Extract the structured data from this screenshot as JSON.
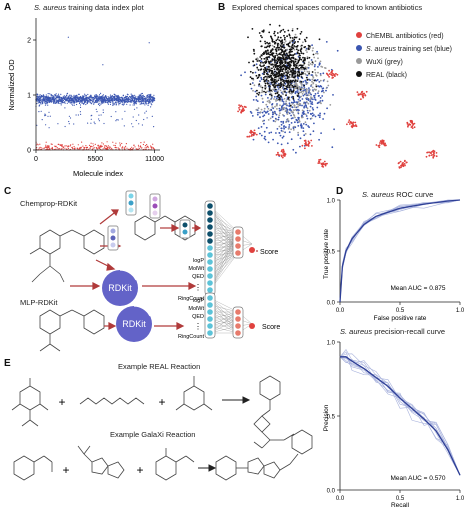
{
  "panels": {
    "A": {
      "letter": "A",
      "title_italic": "S. aureus",
      "title_rest": " training data index plot",
      "ylabel": "Normalized OD",
      "xlabel": "Molecule index",
      "yticks": [
        "0",
        "1",
        "2"
      ],
      "xticks": [
        "0",
        "5500",
        "11000"
      ]
    },
    "B": {
      "letter": "B",
      "title": "Explored chemical spaces compared to known antibiotics",
      "legend": [
        {
          "pre": "ChEMBL antibiotics (red)",
          "italic": "",
          "post": "",
          "color": "#e0413e"
        },
        {
          "pre": "",
          "italic": "S. aureus",
          "post": " training set (blue)",
          "color": "#3a55b0"
        },
        {
          "pre": "WuXi (grey)",
          "italic": "",
          "post": "",
          "color": "#9a9a9a"
        },
        {
          "pre": "REAL (black)",
          "italic": "",
          "post": "",
          "color": "#111111"
        }
      ]
    },
    "C": {
      "letter": "C",
      "label1": "Chemprop-RDKit",
      "label2": "MLP-RDKit",
      "rdkit": "RDKit",
      "score": "Score",
      "features": [
        "logP",
        "MolWt",
        "QED",
        "RingCount"
      ]
    },
    "D": {
      "letter": "D",
      "roc_title_italic": "S. aureus",
      "roc_title_rest": " ROC curve",
      "roc_ylabel": "True positive rate",
      "roc_xlabel": "False positive rate",
      "roc_auc": "Mean AUC = 0.875",
      "pr_title_italic": "S. aureus",
      "pr_title_rest": " precision-recall curve",
      "pr_ylabel": "Precision",
      "pr_xlabel": "Recall",
      "pr_auc": "Mean AUC = 0.570",
      "ticks": [
        "0.0",
        "0.5",
        "1.0"
      ]
    },
    "E": {
      "letter": "E",
      "real_title": "Example REAL Reaction",
      "galaxi_title": "Example GalaXi Reaction",
      "plus": "+"
    }
  },
  "colors": {
    "red": "#e0413e",
    "blue": "#3a55b0",
    "grey": "#9a9a9a",
    "black": "#111111",
    "nn_dark": "#0d4f6b",
    "nn_light": "#5cc3d8",
    "rdkit": "#6363c8"
  },
  "chart_data": [
    {
      "type": "scatter",
      "title": "S. aureus training data index plot",
      "xlabel": "Molecule index",
      "ylabel": "Normalized OD",
      "xlim": [
        0,
        11500
      ],
      "ylim": [
        0,
        2.4
      ],
      "series": [
        {
          "color": "#3a55b0",
          "values": "dense band of inactive molecules at normalized OD ~0.85-1.1"
        },
        {
          "color": "#e0413e",
          "values": "active molecules near normalized OD ~0.0-0.2"
        }
      ]
    },
    {
      "type": "line",
      "title": "S. aureus ROC curve",
      "xlabel": "False positive rate",
      "ylabel": "True positive rate",
      "xlim": [
        0,
        1
      ],
      "ylim": [
        0,
        1
      ],
      "series": [
        {
          "x": [
            0,
            0.02,
            0.05,
            0.1,
            0.2,
            0.3,
            0.5,
            0.7,
            0.9,
            1.0
          ],
          "y": [
            0,
            0.35,
            0.5,
            0.62,
            0.76,
            0.84,
            0.92,
            0.96,
            0.99,
            1.0
          ]
        }
      ]
    },
    {
      "type": "line",
      "title": "S. aureus precision-recall curve",
      "xlabel": "Recall",
      "ylabel": "Precision",
      "xlim": [
        0,
        1
      ],
      "ylim": [
        0,
        1
      ],
      "series": [
        {
          "x": [
            0,
            0.05,
            0.1,
            0.2,
            0.3,
            0.4,
            0.5,
            0.6,
            0.7,
            0.8,
            0.9,
            1.0
          ],
          "y": [
            0.9,
            0.9,
            0.87,
            0.82,
            0.76,
            0.7,
            0.62,
            0.55,
            0.48,
            0.4,
            0.27,
            0.1
          ]
        }
      ]
    }
  ]
}
